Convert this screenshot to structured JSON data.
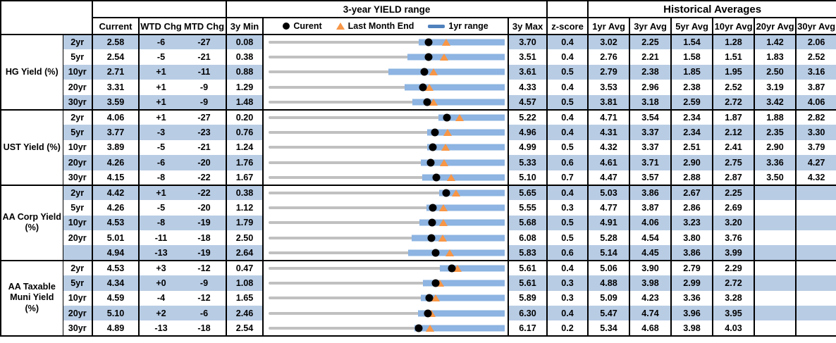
{
  "titles": {
    "yield_range": "3-year YIELD range",
    "historical": "Historical Averages"
  },
  "columns": {
    "current": "Current",
    "wtd": "WTD Chg",
    "mtd": "MTD Chg",
    "min3y": "3y Min",
    "max3y": "3y Max",
    "zscore": "z-score",
    "avgs": [
      "1yr Avg",
      "3yr Avg",
      "5yr Avg",
      "10yr Avg",
      "20yr Avg",
      "30yr Avg"
    ]
  },
  "legend": {
    "current": "Curent",
    "last_month_end": "Last Month End",
    "range_1yr": "1yr range"
  },
  "colors": {
    "row_band": "#b8cce4",
    "range_bar": "#8db4e2",
    "track": "#c0c0c0",
    "marker_current": "#000000",
    "marker_last_month_end": "#f79646",
    "legend_line": "#4f81bd"
  },
  "chart_data": {
    "type": "table",
    "title": "3-year YIELD range",
    "note": "Each row embeds a dot-range chart: x-domain = [min_3y, max_3y]; blue bar = 1yr range (values estimated from pixels); black dot = Current; orange triangle = Last Month End (estimated, equals Current minus MTD change in bp).",
    "groups": [
      {
        "id": "hg-yield",
        "label": "HG Yield (%)",
        "label_lines": [
          "HG Yield (%)"
        ],
        "rows": [
          {
            "tenor": "2yr",
            "current": "2.58",
            "wtd_chg": "-6",
            "mtd_chg": "-27",
            "min_3y": "0.08",
            "max_3y": "3.70",
            "zscore": "0.4",
            "avgs": [
              "3.02",
              "2.25",
              "1.54",
              "1.28",
              "1.42",
              "2.06"
            ],
            "range_1yr_est": [
              2.42,
              3.7
            ],
            "last_month_end_est": 2.85
          },
          {
            "tenor": "5yr",
            "current": "2.54",
            "wtd_chg": "-5",
            "mtd_chg": "-21",
            "min_3y": "0.38",
            "max_3y": "3.51",
            "zscore": "0.4",
            "avgs": [
              "2.76",
              "2.21",
              "1.58",
              "1.51",
              "1.83",
              "2.52"
            ],
            "range_1yr_est": [
              2.25,
              3.51
            ],
            "last_month_end_est": 2.75
          },
          {
            "tenor": "10yr",
            "current": "2.71",
            "wtd_chg": "+1",
            "mtd_chg": "-11",
            "min_3y": "0.88",
            "max_3y": "3.61",
            "zscore": "0.5",
            "avgs": [
              "2.79",
              "2.38",
              "1.85",
              "1.95",
              "2.50",
              "3.16"
            ],
            "range_1yr_est": [
              2.29,
              3.61
            ],
            "last_month_end_est": 2.82
          },
          {
            "tenor": "20yr",
            "current": "3.31",
            "wtd_chg": "+1",
            "mtd_chg": "-9",
            "min_3y": "1.29",
            "max_3y": "4.33",
            "zscore": "0.4",
            "avgs": [
              "3.53",
              "2.96",
              "2.38",
              "2.52",
              "3.19",
              "3.87"
            ],
            "range_1yr_est": [
              3.07,
              4.33
            ],
            "last_month_end_est": 3.4
          },
          {
            "tenor": "30yr",
            "current": "3.59",
            "wtd_chg": "+1",
            "mtd_chg": "-9",
            "min_3y": "1.48",
            "max_3y": "4.57",
            "zscore": "0.5",
            "avgs": [
              "3.81",
              "3.18",
              "2.59",
              "2.72",
              "3.42",
              "4.06"
            ],
            "range_1yr_est": [
              3.4,
              4.57
            ],
            "last_month_end_est": 3.68
          }
        ]
      },
      {
        "id": "ust-yield",
        "label": "UST Yield (%)",
        "label_lines": [
          "UST Yield (%)"
        ],
        "rows": [
          {
            "tenor": "2yr",
            "current": "4.06",
            "wtd_chg": "+1",
            "mtd_chg": "-27",
            "min_3y": "0.20",
            "max_3y": "5.22",
            "zscore": "0.4",
            "avgs": [
              "4.71",
              "3.54",
              "2.34",
              "1.87",
              "1.88",
              "2.82"
            ],
            "range_1yr_est": [
              3.88,
              5.22
            ],
            "last_month_end_est": 4.33
          },
          {
            "tenor": "5yr",
            "current": "3.77",
            "wtd_chg": "-3",
            "mtd_chg": "-23",
            "min_3y": "0.76",
            "max_3y": "4.96",
            "zscore": "0.4",
            "avgs": [
              "4.31",
              "3.37",
              "2.34",
              "2.12",
              "2.35",
              "3.30"
            ],
            "range_1yr_est": [
              3.63,
              4.96
            ],
            "last_month_end_est": 4.0
          },
          {
            "tenor": "10yr",
            "current": "3.89",
            "wtd_chg": "-5",
            "mtd_chg": "-21",
            "min_3y": "1.24",
            "max_3y": "4.99",
            "zscore": "0.5",
            "avgs": [
              "4.32",
              "3.37",
              "2.51",
              "2.41",
              "2.90",
              "3.79"
            ],
            "range_1yr_est": [
              3.8,
              4.99
            ],
            "last_month_end_est": 4.1
          },
          {
            "tenor": "20yr",
            "current": "4.26",
            "wtd_chg": "-6",
            "mtd_chg": "-20",
            "min_3y": "1.76",
            "max_3y": "5.33",
            "zscore": "0.6",
            "avgs": [
              "4.61",
              "3.71",
              "2.90",
              "2.75",
              "3.36",
              "4.27"
            ],
            "range_1yr_est": [
              4.1,
              5.33
            ],
            "last_month_end_est": 4.46
          },
          {
            "tenor": "30yr",
            "current": "4.15",
            "wtd_chg": "-8",
            "mtd_chg": "-22",
            "min_3y": "1.67",
            "max_3y": "5.10",
            "zscore": "0.7",
            "avgs": [
              "4.47",
              "3.57",
              "2.88",
              "2.87",
              "3.50",
              "4.32"
            ],
            "range_1yr_est": [
              3.94,
              5.1
            ],
            "last_month_end_est": 4.37
          }
        ]
      },
      {
        "id": "aa-corp-yield",
        "label": "AA Corp Yield (%)",
        "label_lines": [
          "AA Corp Yield",
          "(%)"
        ],
        "rows": [
          {
            "tenor": "2yr",
            "current": "4.42",
            "wtd_chg": "+1",
            "mtd_chg": "-22",
            "min_3y": "0.38",
            "max_3y": "5.65",
            "zscore": "0.4",
            "avgs": [
              "5.03",
              "3.86",
              "2.67",
              "2.25",
              "",
              ""
            ],
            "range_1yr_est": [
              4.25,
              5.65
            ],
            "last_month_end_est": 4.64
          },
          {
            "tenor": "5yr",
            "current": "4.26",
            "wtd_chg": "-5",
            "mtd_chg": "-20",
            "min_3y": "1.12",
            "max_3y": "5.55",
            "zscore": "0.3",
            "avgs": [
              "4.77",
              "3.87",
              "2.86",
              "2.69",
              "",
              ""
            ],
            "range_1yr_est": [
              4.13,
              5.55
            ],
            "last_month_end_est": 4.46
          },
          {
            "tenor": "10yr",
            "current": "4.53",
            "wtd_chg": "-8",
            "mtd_chg": "-19",
            "min_3y": "1.79",
            "max_3y": "5.68",
            "zscore": "0.5",
            "avgs": [
              "4.91",
              "4.06",
              "3.23",
              "3.20",
              "",
              ""
            ],
            "range_1yr_est": [
              4.32,
              5.68
            ],
            "last_month_end_est": 4.72
          },
          {
            "tenor": "20yr",
            "current": "5.01",
            "wtd_chg": "-11",
            "mtd_chg": "-18",
            "min_3y": "2.50",
            "max_3y": "6.08",
            "zscore": "0.5",
            "avgs": [
              "5.28",
              "4.54",
              "3.80",
              "3.76",
              "",
              ""
            ],
            "range_1yr_est": [
              4.71,
              6.08
            ],
            "last_month_end_est": 5.19
          },
          {
            "tenor": "",
            "current": "4.94",
            "wtd_chg": "-13",
            "mtd_chg": "-19",
            "min_3y": "2.64",
            "max_3y": "5.83",
            "zscore": "0.6",
            "avgs": [
              "5.14",
              "4.45",
              "3.86",
              "3.99",
              "",
              ""
            ],
            "range_1yr_est": [
              4.56,
              5.83
            ],
            "last_month_end_est": 5.13
          }
        ]
      },
      {
        "id": "aa-taxable-muni-yield",
        "label": "AA Taxable Muni Yield (%)",
        "label_lines": [
          "AA Taxable",
          "Muni Yield",
          "(%)"
        ],
        "rows": [
          {
            "tenor": "2yr",
            "current": "4.53",
            "wtd_chg": "+3",
            "mtd_chg": "-12",
            "min_3y": "0.47",
            "max_3y": "5.61",
            "zscore": "0.4",
            "avgs": [
              "5.06",
              "3.90",
              "2.79",
              "2.29",
              "",
              ""
            ],
            "range_1yr_est": [
              4.27,
              5.61
            ],
            "last_month_end_est": 4.65
          },
          {
            "tenor": "5yr",
            "current": "4.34",
            "wtd_chg": "+0",
            "mtd_chg": "-9",
            "min_3y": "1.08",
            "max_3y": "5.61",
            "zscore": "0.3",
            "avgs": [
              "4.88",
              "3.98",
              "2.99",
              "2.72",
              "",
              ""
            ],
            "range_1yr_est": [
              4.1,
              5.61
            ],
            "last_month_end_est": 4.43
          },
          {
            "tenor": "10yr",
            "current": "4.59",
            "wtd_chg": "-4",
            "mtd_chg": "-12",
            "min_3y": "1.65",
            "max_3y": "5.89",
            "zscore": "0.3",
            "avgs": [
              "5.09",
              "4.23",
              "3.36",
              "3.28",
              "",
              ""
            ],
            "range_1yr_est": [
              4.43,
              5.89
            ],
            "last_month_end_est": 4.71
          },
          {
            "tenor": "20yr",
            "current": "5.10",
            "wtd_chg": "+2",
            "mtd_chg": "-6",
            "min_3y": "2.46",
            "max_3y": "6.30",
            "zscore": "0.4",
            "avgs": [
              "5.47",
              "4.74",
              "3.96",
              "3.95",
              "",
              ""
            ],
            "range_1yr_est": [
              4.93,
              6.3
            ],
            "last_month_end_est": 5.16
          },
          {
            "tenor": "30yr",
            "current": "4.89",
            "wtd_chg": "-13",
            "mtd_chg": "-18",
            "min_3y": "2.54",
            "max_3y": "6.17",
            "zscore": "0.2",
            "avgs": [
              "5.34",
              "4.68",
              "3.98",
              "4.03",
              "",
              ""
            ],
            "range_1yr_est": [
              4.82,
              6.17
            ],
            "last_month_end_est": 5.07
          }
        ]
      }
    ]
  }
}
